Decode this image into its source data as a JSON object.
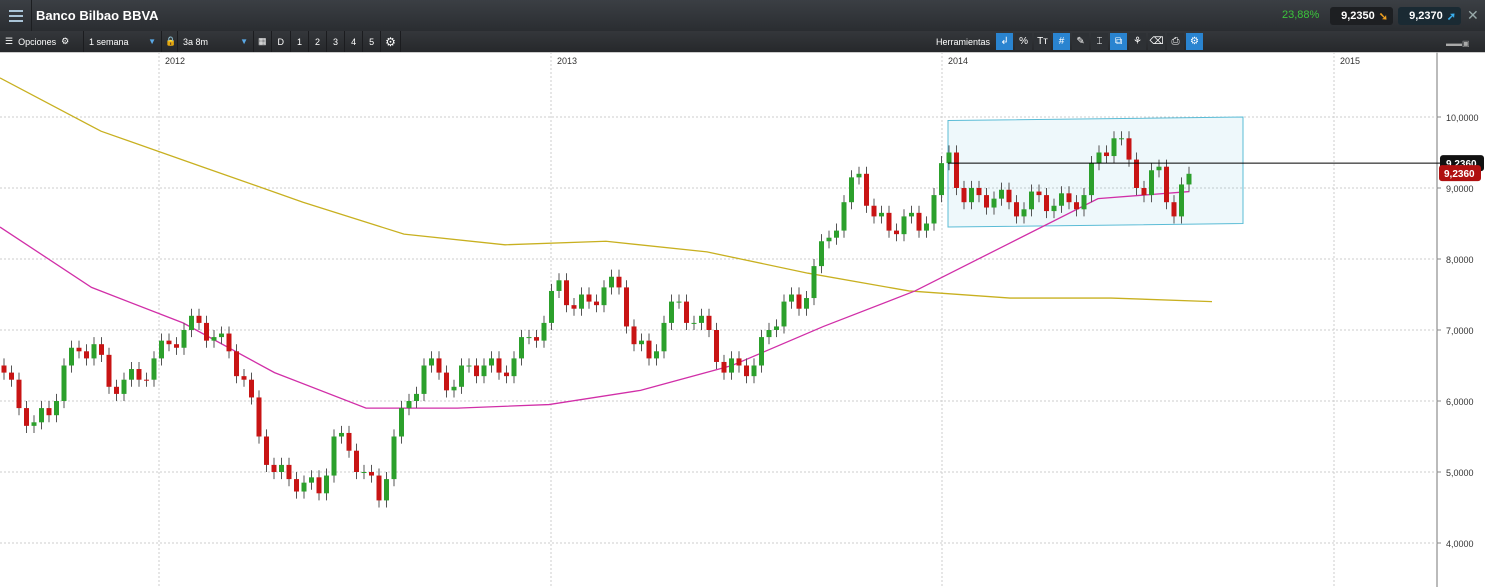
{
  "window": {
    "title": "Banco Bilbao BBVA",
    "change_pct": "23,88%",
    "bid": "9,2350",
    "ask": "9,2370",
    "close_label": "✕"
  },
  "toolbar": {
    "options_label": "Opciones",
    "interval": "1 semana",
    "range": "3a 8m",
    "view_buttons": [
      "D",
      "1",
      "2",
      "3",
      "4",
      "5"
    ],
    "tools_label": "Herramientas",
    "tools": [
      "↲",
      "%",
      "Tт",
      "#",
      "✎",
      "⌶",
      "⧉",
      "⚘",
      "⌫",
      "⎙",
      "⚙"
    ]
  },
  "colors": {
    "up": "#2ca02c",
    "down": "#c81414",
    "ma_short": "#d12fa8",
    "ma_long": "#c8b020",
    "channel": "#5bbcd6",
    "accent": "#2a84d0"
  },
  "chart_data": {
    "type": "candlestick",
    "x_ticks": [
      "2012",
      "2013",
      "2014",
      "2015"
    ],
    "y_ticks": [
      "4,0000",
      "5,0000",
      "6,0000",
      "7,0000",
      "8,0000",
      "9,0000",
      "10,0000"
    ],
    "y_values": [
      4,
      5,
      6,
      7,
      8,
      9,
      10
    ],
    "ylim": [
      3.6,
      11.0
    ],
    "price_step_weeks": 2,
    "closes": [
      6.4,
      5.9,
      5.7,
      5.8,
      6.5,
      6.7,
      6.8,
      6.2,
      6.3,
      6.3,
      6.6,
      6.8,
      7.0,
      7.1,
      6.9,
      6.7,
      6.3,
      5.5,
      5.0,
      4.9,
      4.85,
      4.7,
      5.5,
      5.3,
      5.0,
      4.6,
      5.5,
      6.0,
      6.5,
      6.4,
      6.2,
      6.5,
      6.5,
      6.4,
      6.6,
      6.9,
      7.1,
      7.7,
      7.3,
      7.4,
      7.6,
      7.6,
      6.8,
      6.6,
      7.1,
      7.4,
      7.1,
      7.0,
      6.4,
      6.5,
      6.5,
      7.0,
      7.4,
      7.3,
      7.9,
      8.3,
      8.8,
      9.2,
      8.6,
      8.4,
      8.6,
      8.4,
      8.9,
      9.5,
      8.8,
      8.9,
      8.85,
      8.8,
      8.7,
      8.9,
      8.75,
      8.8,
      8.9,
      9.5,
      9.7,
      9.4,
      8.9,
      9.3,
      8.6,
      9.2
    ],
    "ma_short": [
      8.45,
      7.6,
      7.1,
      6.4,
      5.9,
      5.9,
      5.95,
      6.15,
      6.5,
      7.05,
      7.55,
      8.2,
      8.85,
      8.95
    ],
    "ma_long": [
      10.55,
      9.8,
      9.3,
      8.8,
      8.35,
      8.2,
      8.25,
      8.1,
      7.8,
      7.55,
      7.45,
      7.45,
      7.4
    ],
    "hline_price": 9.35,
    "last_price_label": "9,2360",
    "last_price_bg_label": "9,2360",
    "channel": {
      "top": [
        9.95,
        10.0
      ],
      "bottom": [
        8.45,
        8.5
      ]
    }
  }
}
